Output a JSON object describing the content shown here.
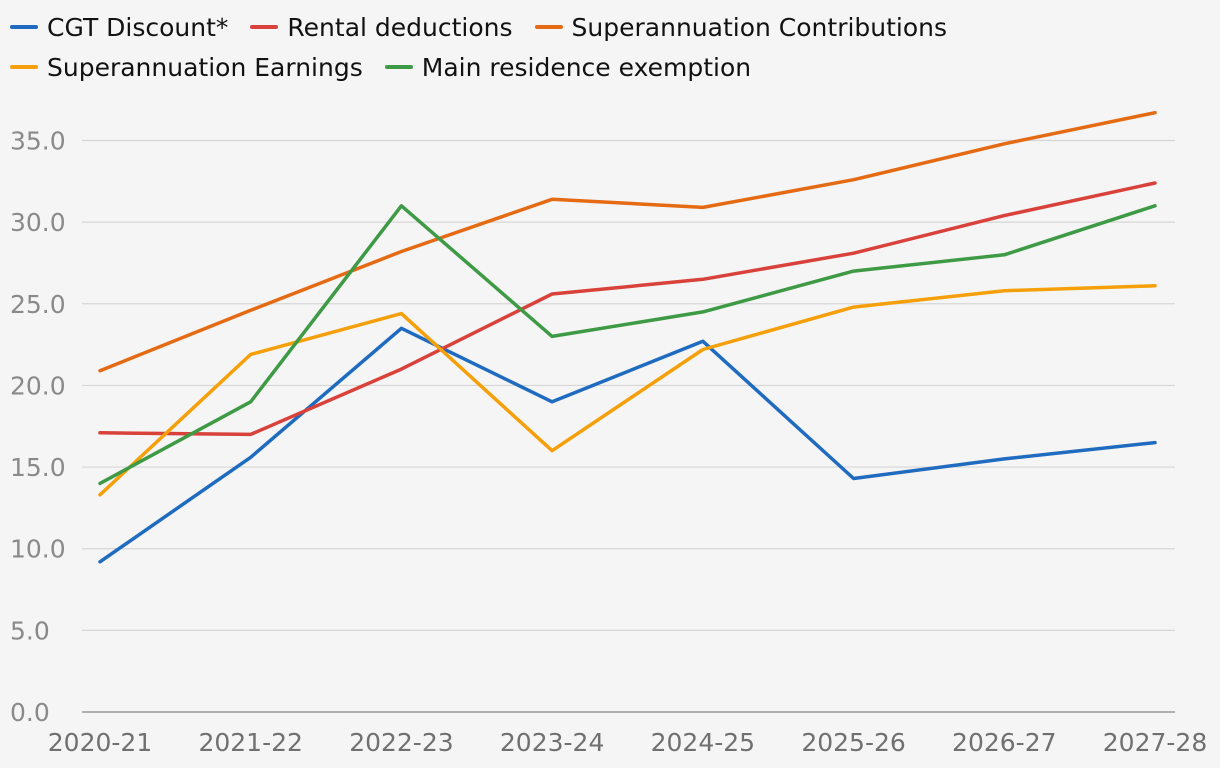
{
  "chart_data": {
    "type": "line",
    "title": "",
    "xlabel": "",
    "ylabel": "",
    "ylim": [
      0,
      37.5
    ],
    "yticks": [
      0,
      5,
      10,
      15,
      20,
      25,
      30,
      35
    ],
    "ytick_labels": [
      "0.0",
      "5.0",
      "10.0",
      "15.0",
      "20.0",
      "25.0",
      "30.0",
      "35.0"
    ],
    "grid": true,
    "legend_position": "top-left",
    "categories": [
      "2020-21",
      "2021-22",
      "2022-23",
      "2023-24",
      "2024-25",
      "2025-26",
      "2026-27",
      "2027-28"
    ],
    "series": [
      {
        "name": "CGT Discount*",
        "color": "#1f6bbf",
        "values": [
          9.2,
          15.6,
          23.5,
          19.0,
          22.7,
          14.3,
          15.5,
          16.5
        ]
      },
      {
        "name": "Rental deductions",
        "color": "#d9413b",
        "values": [
          17.1,
          17.0,
          21.0,
          25.6,
          26.5,
          28.1,
          30.4,
          32.4
        ]
      },
      {
        "name": "Superannuation Contributions",
        "color": "#e56a14",
        "values": [
          20.9,
          24.6,
          28.2,
          31.4,
          30.9,
          32.6,
          34.8,
          36.7
        ]
      },
      {
        "name": "Superannuation Earnings",
        "color": "#f5a00b",
        "values": [
          13.3,
          21.9,
          24.4,
          16.0,
          22.2,
          24.8,
          25.8,
          26.1
        ]
      },
      {
        "name": "Main residence exemption",
        "color": "#3f9a46",
        "values": [
          14.0,
          19.0,
          31.0,
          23.0,
          24.5,
          27.0,
          28.0,
          31.0
        ]
      }
    ]
  }
}
